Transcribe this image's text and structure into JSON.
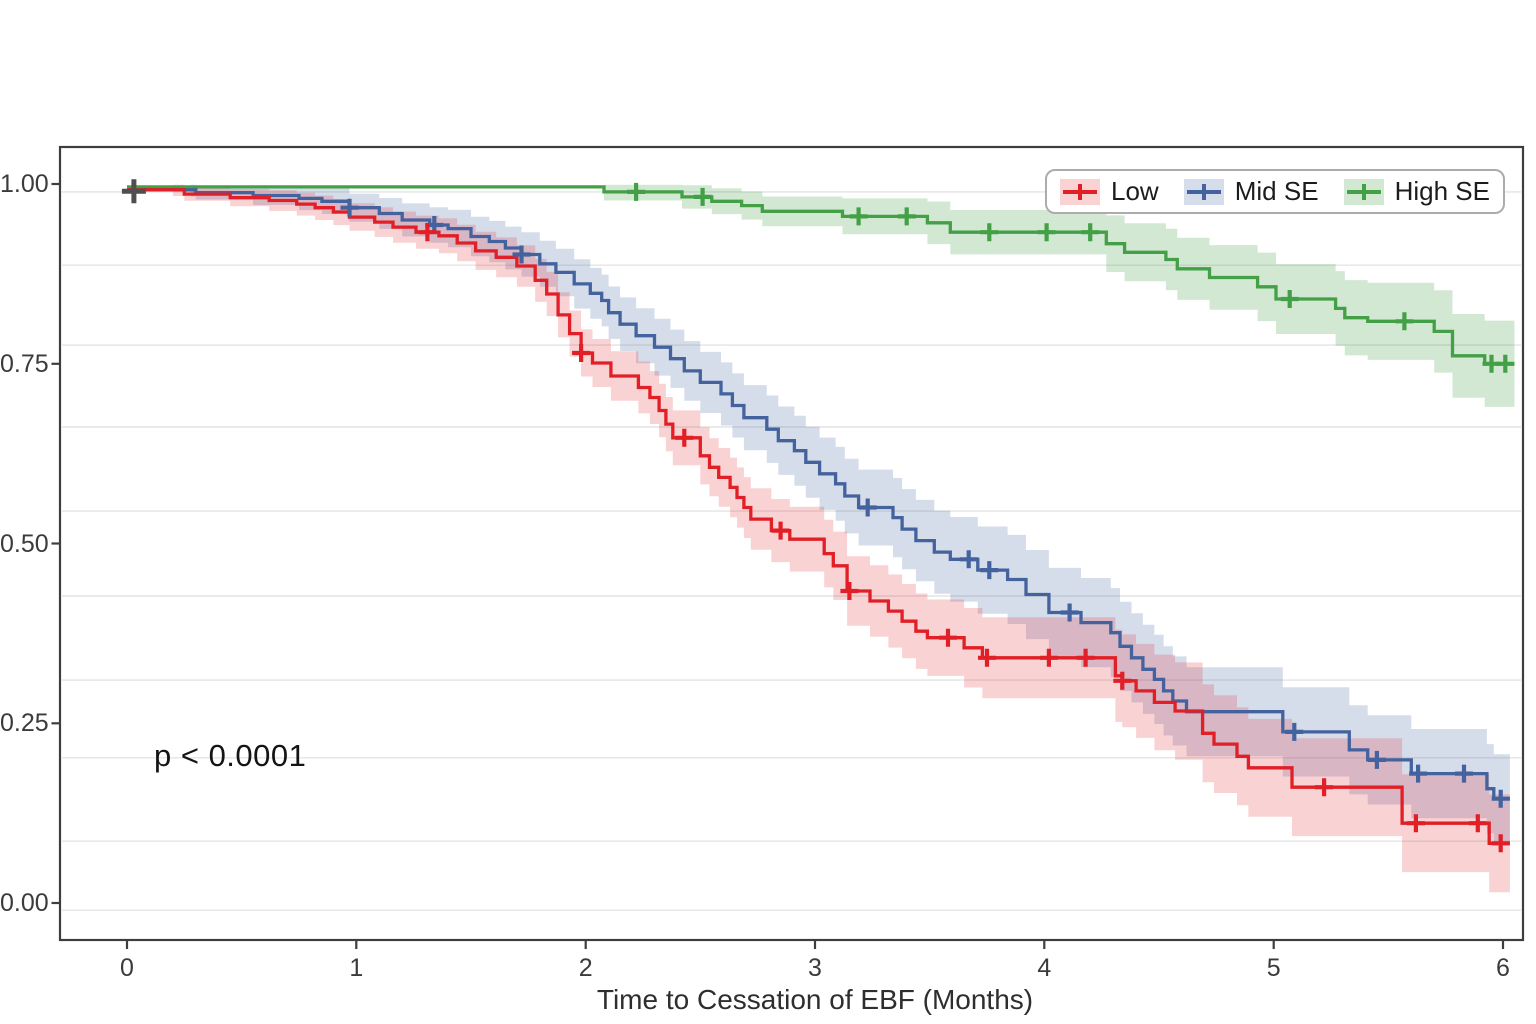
{
  "chart_data": {
    "type": "line",
    "subtype": "kaplan-meier-step-survival",
    "title": "",
    "xlabel": "Time to Cessation of EBF (Months)",
    "ylabel": "",
    "annotation": "p < 0.0001",
    "legend_position": "top-right",
    "grid": "horizontal-only",
    "xlim": [
      -0.29,
      6.09
    ],
    "ylim": [
      -0.05,
      1.05
    ],
    "x_ticks": [
      0,
      1,
      2,
      3,
      4,
      5,
      6
    ],
    "x_tick_labels": [
      "0",
      "1",
      "2",
      "3",
      "4",
      "5",
      "6"
    ],
    "y_ticks": [
      1.0,
      0.75,
      0.5,
      0.25,
      0.0
    ],
    "y_tick_labels": [
      "1.00",
      "0.75",
      "0.50",
      "0.25",
      "0.00"
    ],
    "minor_gridline_values": [
      0.989,
      0.887,
      0.776,
      0.662,
      0.545,
      0.427,
      0.31,
      0.202,
      0.086,
      -0.01
    ],
    "start_censor": {
      "t": 0.03,
      "v": 0.99,
      "color": "#4f4f4f"
    },
    "series": [
      {
        "name": "High SE",
        "color": "#43a047",
        "band_color": "rgba(67,160,71,0.24)",
        "end": 6.05,
        "band": {
          "start": 2.08,
          "a": -0.014,
          "b": 0.0125,
          "cap": 0.075,
          "vcap": 0.999
        },
        "censor_times": [
          2.22,
          2.51,
          3.19,
          3.4,
          3.76,
          4.01,
          4.2,
          5.07,
          5.57,
          5.95,
          6.01
        ],
        "steps": [
          [
            0,
            0.996
          ],
          [
            2.08,
            0.989
          ],
          [
            2.42,
            0.982
          ],
          [
            2.55,
            0.976
          ],
          [
            2.68,
            0.97
          ],
          [
            2.77,
            0.962
          ],
          [
            3.12,
            0.955
          ],
          [
            3.49,
            0.946
          ],
          [
            3.59,
            0.933
          ],
          [
            4.27,
            0.917
          ],
          [
            4.35,
            0.905
          ],
          [
            4.53,
            0.895
          ],
          [
            4.58,
            0.882
          ],
          [
            4.72,
            0.87
          ],
          [
            4.93,
            0.857
          ],
          [
            5.01,
            0.84
          ],
          [
            5.27,
            0.827
          ],
          [
            5.31,
            0.814
          ],
          [
            5.41,
            0.809
          ],
          [
            5.7,
            0.795
          ],
          [
            5.78,
            0.761
          ],
          [
            5.92,
            0.75
          ]
        ]
      },
      {
        "name": "Mid SE",
        "color": "#44639e",
        "band_color": "rgba(68,99,158,0.22)",
        "end": 6.03,
        "band": {
          "start": 0.28,
          "a": 0.005,
          "b": 0.015,
          "cap": 0.062,
          "vcap": 0.999
        },
        "censor_times": [
          0.97,
          1.34,
          1.72,
          3.23,
          3.67,
          3.76,
          4.11,
          5.09,
          5.45,
          5.63,
          5.83,
          5.99
        ],
        "steps": [
          [
            0,
            0.992
          ],
          [
            0.3,
            0.988
          ],
          [
            0.55,
            0.984
          ],
          [
            0.75,
            0.98
          ],
          [
            0.85,
            0.976
          ],
          [
            0.97,
            0.967
          ],
          [
            1.1,
            0.959
          ],
          [
            1.2,
            0.95
          ],
          [
            1.32,
            0.943
          ],
          [
            1.4,
            0.938
          ],
          [
            1.5,
            0.927
          ],
          [
            1.58,
            0.92
          ],
          [
            1.65,
            0.911
          ],
          [
            1.72,
            0.902
          ],
          [
            1.8,
            0.889
          ],
          [
            1.87,
            0.877
          ],
          [
            1.95,
            0.861
          ],
          [
            2.02,
            0.848
          ],
          [
            2.07,
            0.838
          ],
          [
            2.1,
            0.821
          ],
          [
            2.15,
            0.805
          ],
          [
            2.22,
            0.789
          ],
          [
            2.3,
            0.773
          ],
          [
            2.37,
            0.757
          ],
          [
            2.43,
            0.74
          ],
          [
            2.5,
            0.724
          ],
          [
            2.59,
            0.708
          ],
          [
            2.64,
            0.692
          ],
          [
            2.69,
            0.675
          ],
          [
            2.79,
            0.659
          ],
          [
            2.84,
            0.643
          ],
          [
            2.91,
            0.629
          ],
          [
            2.96,
            0.613
          ],
          [
            3.02,
            0.597
          ],
          [
            3.09,
            0.583
          ],
          [
            3.13,
            0.566
          ],
          [
            3.19,
            0.55
          ],
          [
            3.34,
            0.536
          ],
          [
            3.38,
            0.52
          ],
          [
            3.44,
            0.504
          ],
          [
            3.52,
            0.488
          ],
          [
            3.59,
            0.478
          ],
          [
            3.71,
            0.463
          ],
          [
            3.84,
            0.45
          ],
          [
            3.92,
            0.429
          ],
          [
            4.02,
            0.404
          ],
          [
            4.16,
            0.39
          ],
          [
            4.29,
            0.376
          ],
          [
            4.33,
            0.357
          ],
          [
            4.38,
            0.341
          ],
          [
            4.43,
            0.325
          ],
          [
            4.48,
            0.311
          ],
          [
            4.52,
            0.295
          ],
          [
            4.56,
            0.281
          ],
          [
            4.62,
            0.266
          ],
          [
            5.04,
            0.238
          ],
          [
            5.33,
            0.213
          ],
          [
            5.41,
            0.199
          ],
          [
            5.6,
            0.18
          ],
          [
            5.93,
            0.159
          ],
          [
            5.96,
            0.145
          ]
        ]
      },
      {
        "name": "Low",
        "color": "#e01f26",
        "band_color": "rgba(224,31,38,0.20)",
        "end": 6.03,
        "band": {
          "start": 0.2,
          "a": 0.006,
          "b": 0.0135,
          "cap": 0.068,
          "vcap": 0.999
        },
        "censor_times": [
          1.31,
          1.98,
          2.43,
          2.85,
          3.15,
          3.58,
          3.75,
          4.02,
          4.18,
          4.34,
          5.22,
          5.62,
          5.89,
          5.99
        ],
        "steps": [
          [
            0,
            0.992
          ],
          [
            0.25,
            0.986
          ],
          [
            0.45,
            0.981
          ],
          [
            0.62,
            0.977
          ],
          [
            0.74,
            0.972
          ],
          [
            0.82,
            0.967
          ],
          [
            0.9,
            0.961
          ],
          [
            0.97,
            0.954
          ],
          [
            1.08,
            0.947
          ],
          [
            1.16,
            0.94
          ],
          [
            1.26,
            0.933
          ],
          [
            1.36,
            0.928
          ],
          [
            1.44,
            0.918
          ],
          [
            1.52,
            0.907
          ],
          [
            1.61,
            0.898
          ],
          [
            1.7,
            0.886
          ],
          [
            1.78,
            0.866
          ],
          [
            1.83,
            0.847
          ],
          [
            1.88,
            0.818
          ],
          [
            1.93,
            0.792
          ],
          [
            1.98,
            0.765
          ],
          [
            2.03,
            0.751
          ],
          [
            2.11,
            0.733
          ],
          [
            2.23,
            0.717
          ],
          [
            2.28,
            0.703
          ],
          [
            2.32,
            0.685
          ],
          [
            2.35,
            0.666
          ],
          [
            2.38,
            0.647
          ],
          [
            2.5,
            0.622
          ],
          [
            2.54,
            0.606
          ],
          [
            2.58,
            0.592
          ],
          [
            2.63,
            0.578
          ],
          [
            2.66,
            0.564
          ],
          [
            2.69,
            0.55
          ],
          [
            2.72,
            0.534
          ],
          [
            2.81,
            0.518
          ],
          [
            2.89,
            0.506
          ],
          [
            3.04,
            0.486
          ],
          [
            3.08,
            0.469
          ],
          [
            3.14,
            0.434
          ],
          [
            3.24,
            0.42
          ],
          [
            3.32,
            0.406
          ],
          [
            3.38,
            0.392
          ],
          [
            3.44,
            0.378
          ],
          [
            3.49,
            0.369
          ],
          [
            3.65,
            0.355
          ],
          [
            3.73,
            0.341
          ],
          [
            4.31,
            0.316
          ],
          [
            4.34,
            0.309
          ],
          [
            4.4,
            0.295
          ],
          [
            4.48,
            0.279
          ],
          [
            4.57,
            0.267
          ],
          [
            4.69,
            0.236
          ],
          [
            4.74,
            0.221
          ],
          [
            4.84,
            0.204
          ],
          [
            4.89,
            0.188
          ],
          [
            5.08,
            0.161
          ],
          [
            5.56,
            0.111
          ],
          [
            5.94,
            0.083
          ]
        ]
      }
    ]
  }
}
